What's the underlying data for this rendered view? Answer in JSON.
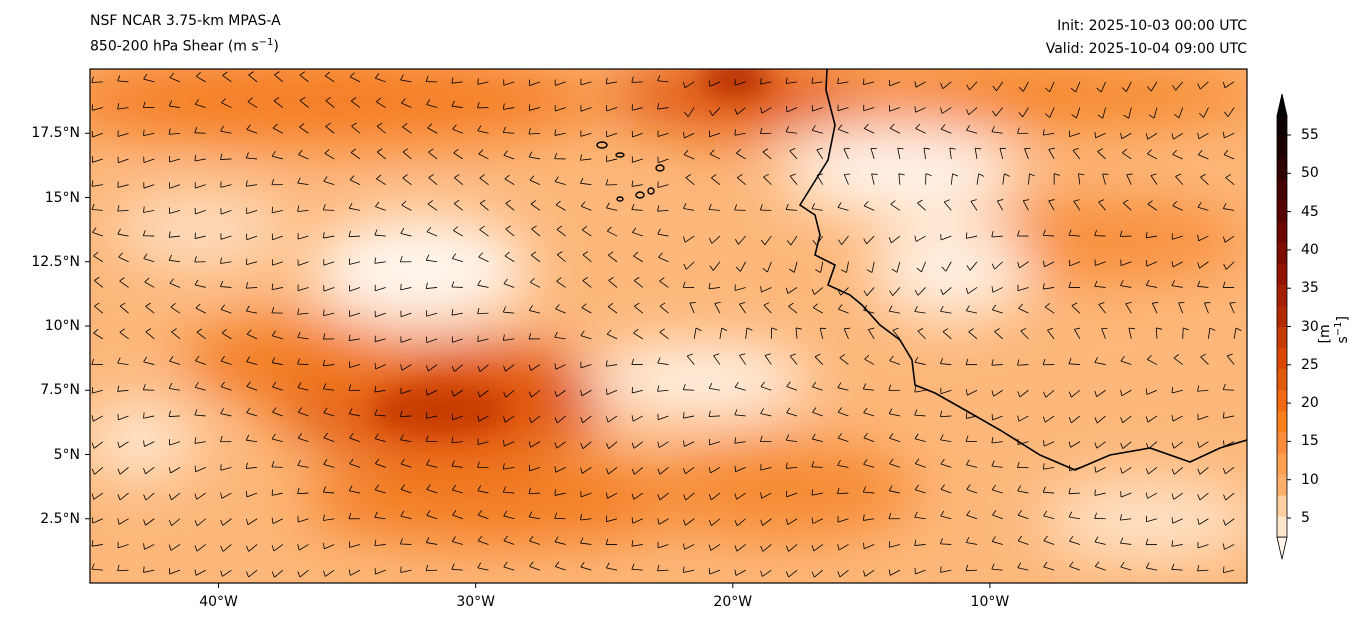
{
  "title_left": {
    "line1": "NSF NCAR 3.75-km MPAS-A",
    "line2_main": "850-200 hPa Shear (m s",
    "line2_sup": "−1",
    "line2_end": ")"
  },
  "title_right": {
    "init": "Init: 2025-10-03 00:00 UTC",
    "valid": "Valid: 2025-10-04 09:00 UTC"
  },
  "map": {
    "lon_range": [
      -45,
      0
    ],
    "lat_range": [
      0,
      20
    ],
    "lat_ticks": [
      {
        "v": 17.5,
        "label": "17.5°N"
      },
      {
        "v": 15,
        "label": "15°N"
      },
      {
        "v": 12.5,
        "label": "12.5°N"
      },
      {
        "v": 10,
        "label": "10°N"
      },
      {
        "v": 7.5,
        "label": "7.5°N"
      },
      {
        "v": 5,
        "label": "5°N"
      },
      {
        "v": 2.5,
        "label": "2.5°N"
      }
    ],
    "lon_ticks": [
      {
        "v": -40,
        "label": "40°W"
      },
      {
        "v": -30,
        "label": "30°W"
      },
      {
        "v": -20,
        "label": "20°W"
      },
      {
        "v": -10,
        "label": "10°W"
      }
    ]
  },
  "colorbar": {
    "label_main": "[m s",
    "label_sup": "−1",
    "label_end": "]",
    "range": [
      2.5,
      57.5
    ],
    "ticks": [
      5,
      10,
      15,
      20,
      25,
      30,
      35,
      40,
      45,
      50,
      55
    ],
    "colors": [
      "#fff5eb",
      "#fee6ce",
      "#fdd0a2",
      "#fdae6b",
      "#fd9f4f",
      "#fd8d3c",
      "#f87f1c",
      "#f16913",
      "#e05a0a",
      "#d94801",
      "#c63a03",
      "#b32a00",
      "#a21e00",
      "#921400",
      "#7f0c00",
      "#6b0500",
      "#560200",
      "#420000",
      "#2e0000",
      "#1c0000",
      "#0e0000",
      "#000000"
    ]
  }
}
